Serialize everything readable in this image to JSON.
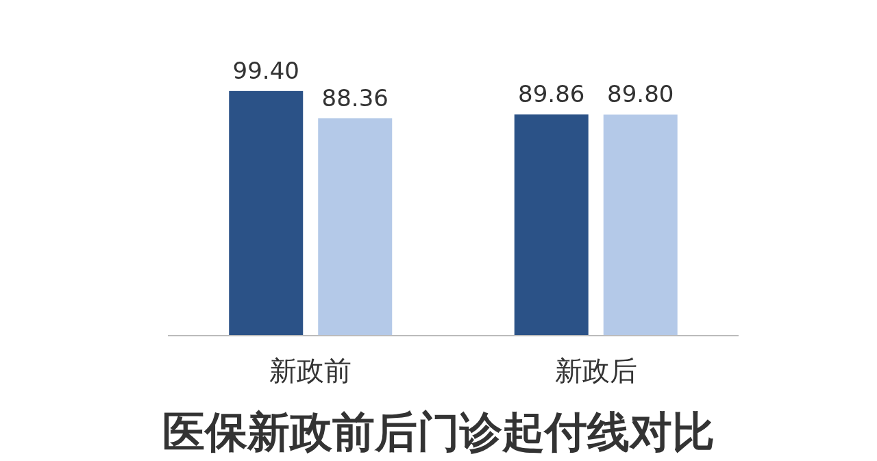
{
  "chart_data": {
    "type": "bar",
    "title": "医保新政前后门诊起付线对比",
    "categories": [
      "新政前",
      "新政后"
    ],
    "series": [
      {
        "color": "#2b5287",
        "values": [
          99.4,
          89.86
        ],
        "value_labels": [
          "99.40",
          "89.86"
        ]
      },
      {
        "color": "#b4c9e8",
        "values": [
          88.36,
          89.8
        ],
        "value_labels": [
          "88.36",
          "89.80"
        ]
      }
    ]
  }
}
